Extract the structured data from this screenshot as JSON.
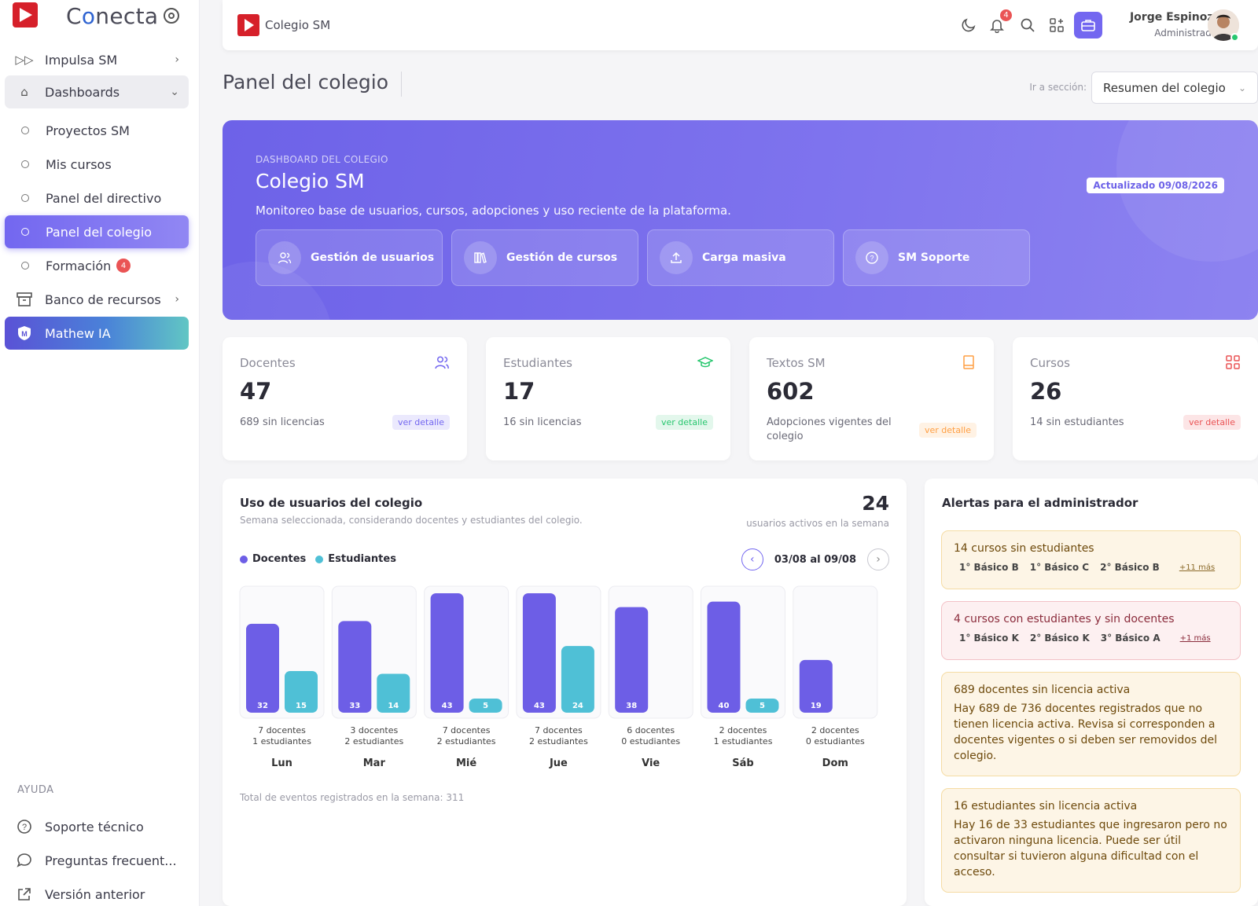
{
  "sidebar": {
    "brand": "Conecta",
    "items": [
      {
        "label": "Impulsa SM"
      },
      {
        "label": "Dashboards"
      },
      {
        "label": "Proyectos SM"
      },
      {
        "label": "Mis cursos"
      },
      {
        "label": "Panel del directivo"
      },
      {
        "label": "Panel del colegio"
      },
      {
        "label": "Formación",
        "badge": "4"
      },
      {
        "label": "Banco de recursos"
      },
      {
        "label": "Mathew IA"
      }
    ],
    "help_title": "AYUDA",
    "help_items": [
      {
        "label": "Soporte técnico"
      },
      {
        "label": "Preguntas frecuent..."
      },
      {
        "label": "Versión anterior"
      }
    ]
  },
  "topbar": {
    "school": "Colegio SM",
    "notifications": "4",
    "user_name": "Jorge Espinoza",
    "user_role": "Administrador"
  },
  "page": {
    "title": "Panel del colegio",
    "goto_label": "Ir a sección:",
    "goto_value": "Resumen del colegio"
  },
  "hero": {
    "eyebrow": "DASHBOARD DEL COLEGIO",
    "title": "Colegio SM",
    "description": "Monitoreo base de usuarios, cursos, adopciones y uso reciente de la plataforma.",
    "updated": "Actualizado 09/08/2026",
    "actions": [
      {
        "label": "Gestión de usuarios"
      },
      {
        "label": "Gestión de cursos"
      },
      {
        "label": "Carga masiva"
      },
      {
        "label": "SM Soporte"
      }
    ]
  },
  "stats": [
    {
      "label": "Docentes",
      "value": "47",
      "sub": "689 sin licencias",
      "link": "ver detalle",
      "color": "#7367f0"
    },
    {
      "label": "Estudiantes",
      "value": "17",
      "sub": "16 sin licencias",
      "link": "ver detalle",
      "color": "#28c76f"
    },
    {
      "label": "Textos SM",
      "value": "602",
      "sub": "Adopciones vigentes del colegio",
      "link": "ver detalle",
      "color": "#ff9f43"
    },
    {
      "label": "Cursos",
      "value": "26",
      "sub": "14 sin estudiantes",
      "link": "ver detalle",
      "color": "#ea5455"
    }
  ],
  "usage": {
    "title": "Uso de usuarios del colegio",
    "subtitle": "Semana seleccionada, considerando docentes y estudiantes del colegio.",
    "total_active": "24",
    "total_active_label": "usuarios activos en la semana",
    "week": "03/08 al 09/08",
    "total_events": "Total de eventos registrados en la semana: 311"
  },
  "chart_data": {
    "type": "bar",
    "categories": [
      "Lun",
      "Mar",
      "Mié",
      "Jue",
      "Vie",
      "Sáb",
      "Dom"
    ],
    "series": [
      {
        "name": "Docentes",
        "values": [
          32,
          33,
          43,
          43,
          38,
          40,
          19
        ],
        "color": "#6d5ee6"
      },
      {
        "name": "Estudiantes",
        "values": [
          15,
          14,
          5,
          24,
          0,
          5,
          0
        ],
        "color": "#4fc0d6"
      }
    ],
    "captions_docentes": [
      "7 docentes",
      "3 docentes",
      "7 docentes",
      "7 docentes",
      "6 docentes",
      "2 docentes",
      "2 docentes"
    ],
    "captions_estudiantes": [
      "1 estudiantes",
      "2 estudiantes",
      "2 estudiantes",
      "2 estudiantes",
      "0 estudiantes",
      "1 estudiantes",
      "0 estudiantes"
    ],
    "ylim": [
      0,
      43
    ],
    "grid": false,
    "legend": "top-left"
  },
  "alerts": {
    "title": "Alertas para el administrador",
    "items": [
      {
        "title": "14 cursos sin estudiantes",
        "chips": [
          "1° Básico B",
          "1° Básico C",
          "2° Básico B"
        ],
        "more": "+11 más"
      },
      {
        "title": "4 cursos con estudiantes y sin docentes",
        "chips": [
          "1° Básico K",
          "2° Básico K",
          "3° Básico A"
        ],
        "more": "+1 más"
      },
      {
        "title": "689 docentes sin licencia activa",
        "body": "Hay 689 de 736 docentes registrados que no tienen licencia activa. Revisa si corresponden a docentes vigentes o si deben ser removidos del colegio."
      },
      {
        "title": "16 estudiantes sin licencia activa",
        "body": "Hay 16 de 33 estudiantes que ingresaron pero no activaron ninguna licencia. Puede ser útil consultar si tuvieron alguna dificultad con el acceso."
      }
    ]
  }
}
